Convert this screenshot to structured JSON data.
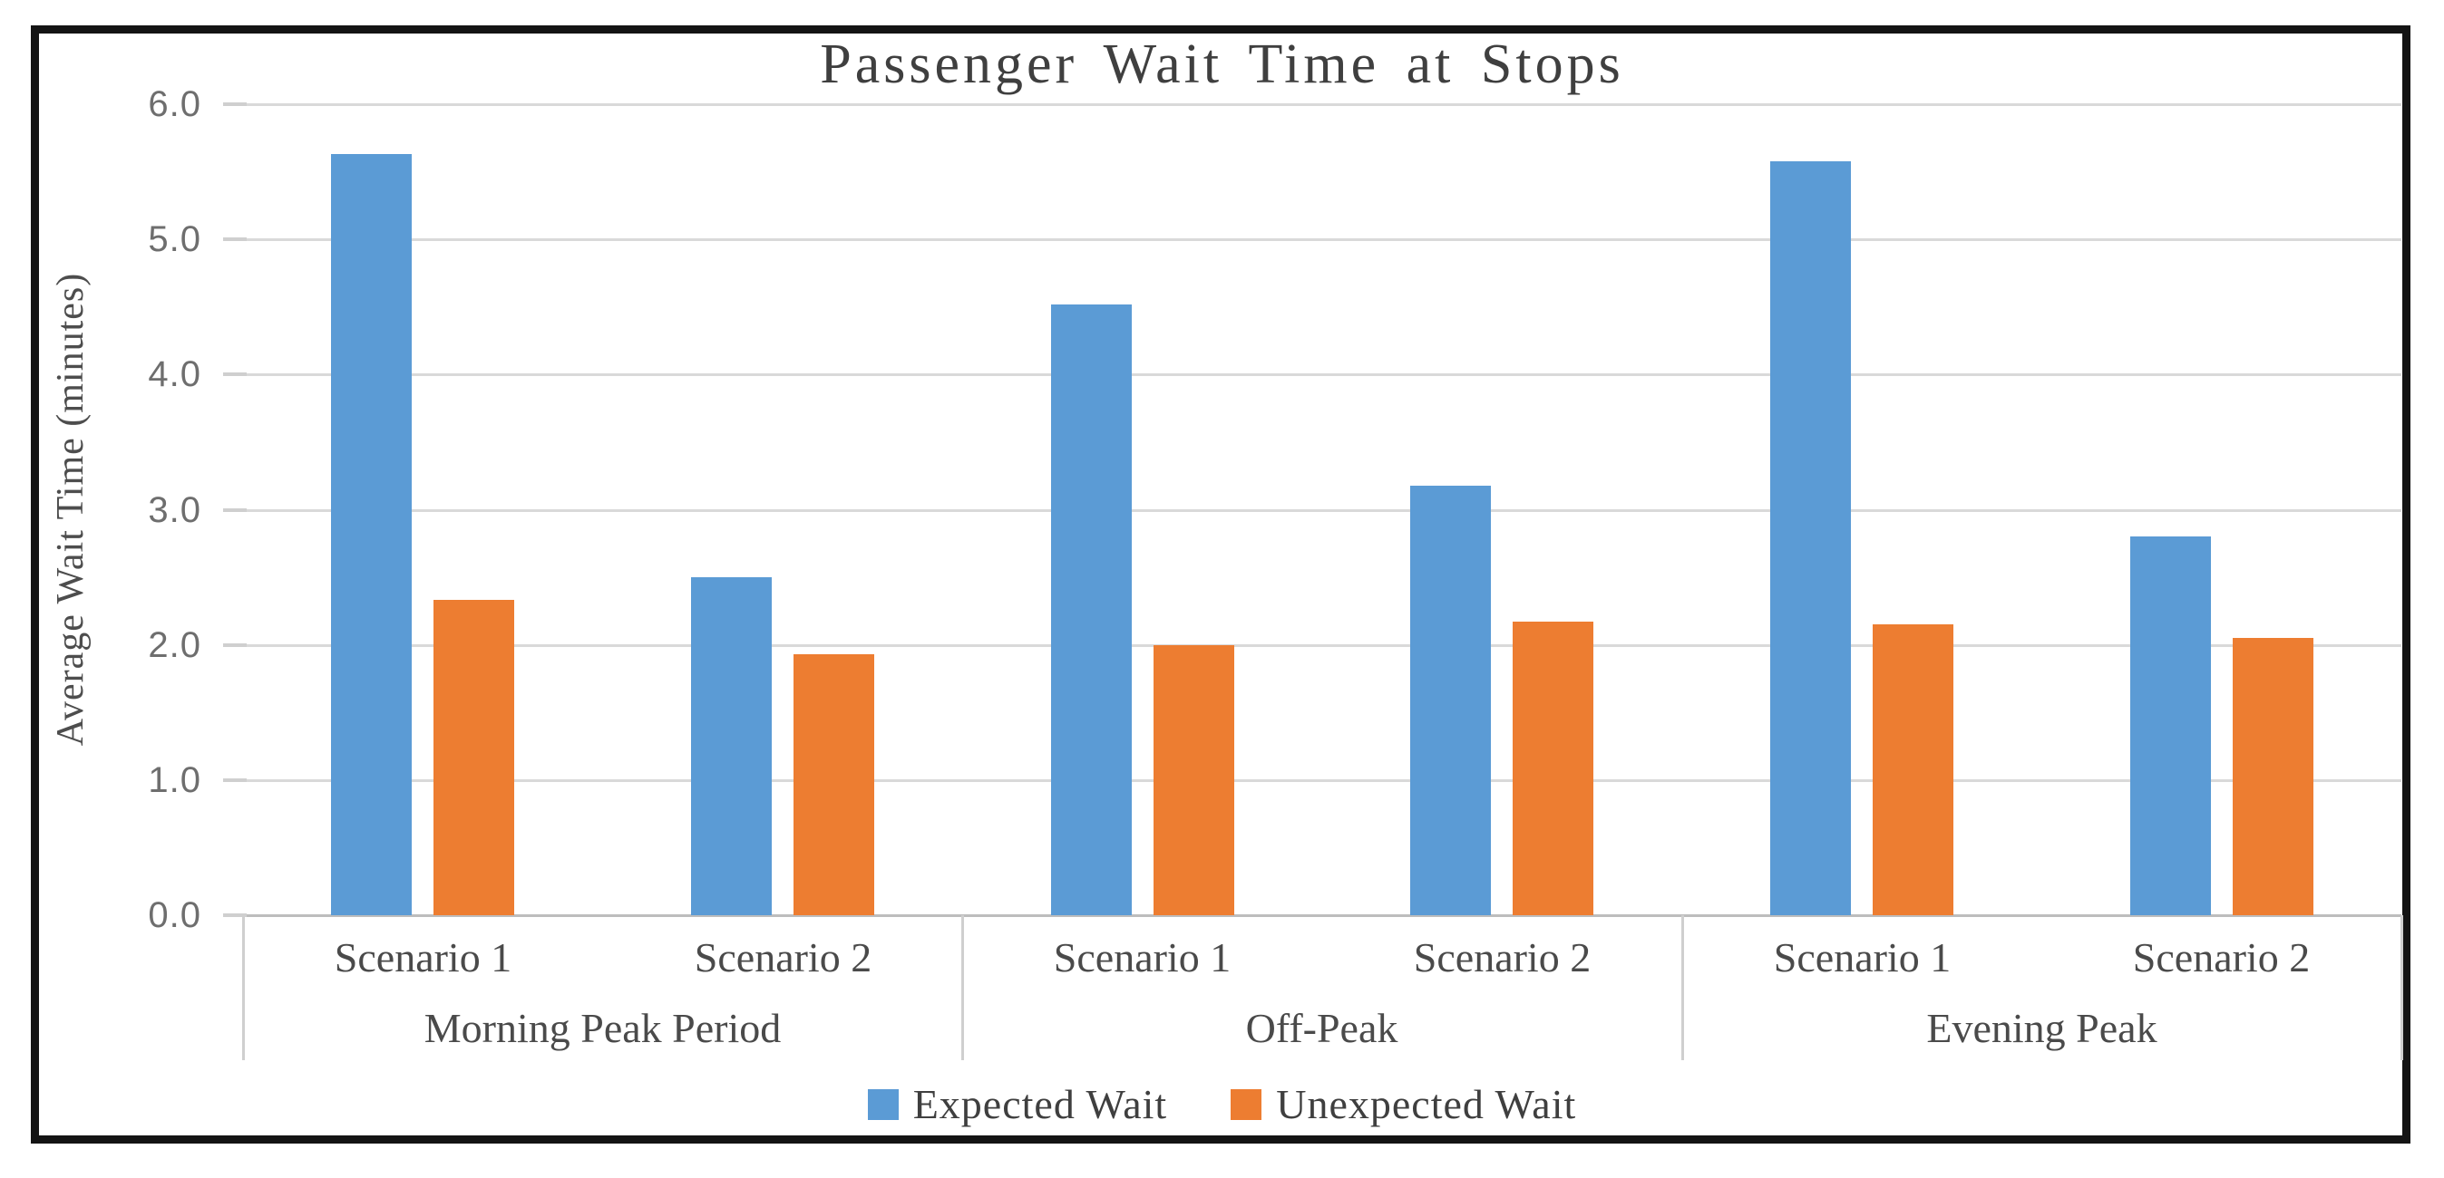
{
  "title": "Passenger Wait Time at Stops",
  "y_axis": {
    "title": "Average Wait Time (minutes)",
    "tick_labels": [
      "6.0",
      "5.0",
      "4.0",
      "3.0",
      "2.0",
      "1.0",
      "0.0"
    ],
    "min": 0,
    "max": 6,
    "step": 1
  },
  "legend": {
    "position": "bottom-center",
    "items": [
      {
        "label": "Expected Wait",
        "color": "#5B9BD5",
        "swatch": "blue-square"
      },
      {
        "label": "Unexpected Wait",
        "color": "#ED7D31",
        "swatch": "orange-square"
      }
    ]
  },
  "colors": {
    "expected_wait": "#5B9BD5",
    "unexpected_wait": "#ED7D31",
    "gridline": "#D9D9D9",
    "axis_baseline": "#BDBDBD",
    "axis_text": "#4A4A4A",
    "title_text": "#3F3F3F",
    "frame": "#141414"
  },
  "chart_data": {
    "type": "bar",
    "title": "Passenger Wait Time at Stops",
    "xlabel": "",
    "ylabel": "Average Wait Time (minutes)",
    "ylim": [
      0,
      6
    ],
    "ytick_step": 1.0,
    "grid": "horizontal",
    "legend_position": "bottom-center",
    "x_groups": [
      {
        "label": "Morning Peak Period",
        "categories": [
          "Scenario 1",
          "Scenario 2"
        ]
      },
      {
        "label": "Off-Peak",
        "categories": [
          "Scenario 1",
          "Scenario 2"
        ]
      },
      {
        "label": "Evening Peak",
        "categories": [
          "Scenario 1",
          "Scenario 2"
        ]
      }
    ],
    "category_order": [
      "Morning Peak Period / Scenario 1",
      "Morning Peak Period / Scenario 2",
      "Off-Peak / Scenario 1",
      "Off-Peak / Scenario 2",
      "Evening Peak / Scenario 1",
      "Evening Peak / Scenario 2"
    ],
    "series": [
      {
        "name": "Expected Wait",
        "color": "#5B9BD5",
        "values": [
          5.63,
          2.5,
          4.52,
          3.18,
          5.58,
          2.8
        ]
      },
      {
        "name": "Unexpected Wait",
        "color": "#ED7D31",
        "values": [
          2.33,
          1.93,
          2.0,
          2.17,
          2.15,
          2.05
        ]
      }
    ]
  }
}
